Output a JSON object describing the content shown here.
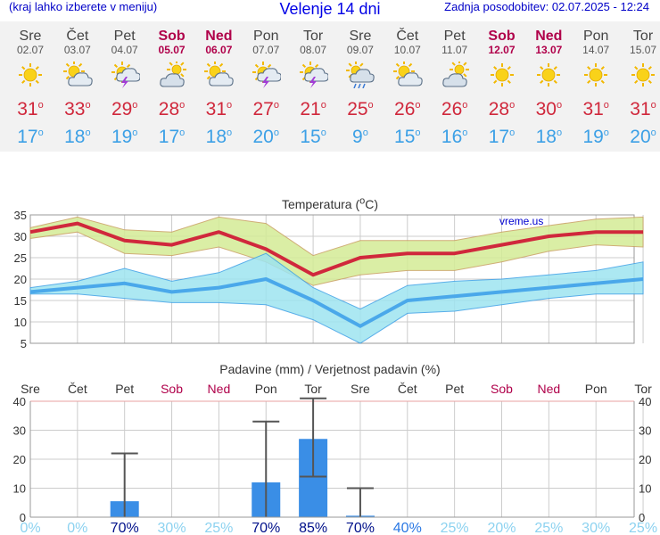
{
  "header": {
    "left": "(kraj lahko izberete v meniju)",
    "title": "Velenje 14 dni",
    "right": "Zadnja posodobitev: 02.07.2025 - 12:24"
  },
  "days": [
    {
      "name": "Sre",
      "date": "02.07",
      "weekend": false,
      "icon": "sun-icon",
      "tmax": "31",
      "tmin": "17"
    },
    {
      "name": "Čet",
      "date": "03.07",
      "weekend": false,
      "icon": "sun-cloud-icon",
      "tmax": "33",
      "tmin": "18"
    },
    {
      "name": "Pet",
      "date": "04.07",
      "weekend": false,
      "icon": "sun-thunder-icon",
      "tmax": "29",
      "tmin": "19"
    },
    {
      "name": "Sob",
      "date": "05.07",
      "weekend": true,
      "icon": "cloud-sun-icon",
      "tmax": "28",
      "tmin": "17"
    },
    {
      "name": "Ned",
      "date": "06.07",
      "weekend": true,
      "icon": "sun-cloud-icon",
      "tmax": "31",
      "tmin": "18"
    },
    {
      "name": "Pon",
      "date": "07.07",
      "weekend": false,
      "icon": "sun-thunder-icon",
      "tmax": "27",
      "tmin": "20"
    },
    {
      "name": "Tor",
      "date": "08.07",
      "weekend": false,
      "icon": "sun-thunder-icon",
      "tmax": "21",
      "tmin": "15"
    },
    {
      "name": "Sre",
      "date": "09.07",
      "weekend": false,
      "icon": "rain-cloud-icon",
      "tmax": "25",
      "tmin": "9"
    },
    {
      "name": "Čet",
      "date": "10.07",
      "weekend": false,
      "icon": "sun-cloud-icon",
      "tmax": "26",
      "tmin": "15"
    },
    {
      "name": "Pet",
      "date": "11.07",
      "weekend": false,
      "icon": "cloud-sun-icon",
      "tmax": "26",
      "tmin": "16"
    },
    {
      "name": "Sob",
      "date": "12.07",
      "weekend": true,
      "icon": "sun-icon",
      "tmax": "28",
      "tmin": "17"
    },
    {
      "name": "Ned",
      "date": "13.07",
      "weekend": true,
      "icon": "sun-icon",
      "tmax": "30",
      "tmin": "18"
    },
    {
      "name": "Pon",
      "date": "14.07",
      "weekend": false,
      "icon": "sun-icon",
      "tmax": "31",
      "tmin": "19"
    },
    {
      "name": "Tor",
      "date": "15.07",
      "weekend": false,
      "icon": "sun-icon",
      "tmax": "31",
      "tmin": "20"
    }
  ],
  "colors": {
    "max": "#d0283c",
    "min": "#3ca0e6",
    "maxBand": "#d4ec96",
    "minBand": "#9ee4f0",
    "precipBar": "#3a8ee6",
    "weekend": "#b0004a"
  },
  "chart_data": [
    {
      "type": "line",
      "title": "Temperatura (°C)",
      "watermark": "vreme.us",
      "ylim": [
        5,
        35
      ],
      "yticks": [
        5,
        10,
        15,
        20,
        25,
        30,
        35
      ],
      "grid": true,
      "series": [
        {
          "name": "max",
          "values": [
            31,
            33,
            29,
            28,
            31,
            27,
            21,
            25,
            26,
            26,
            28,
            30,
            31,
            31
          ]
        },
        {
          "name": "max-low",
          "values": [
            29.5,
            31,
            26,
            25.5,
            27.5,
            24,
            18.5,
            21,
            22,
            22,
            24,
            26.5,
            28,
            27.5
          ]
        },
        {
          "name": "max-high",
          "values": [
            32,
            34.5,
            31.5,
            31,
            34.5,
            33,
            25.5,
            29,
            29,
            29,
            31,
            32.5,
            34,
            34.5
          ]
        },
        {
          "name": "min",
          "values": [
            17,
            18,
            19,
            17,
            18,
            20,
            15,
            9,
            15,
            16,
            17,
            18,
            19,
            20
          ]
        },
        {
          "name": "min-low",
          "values": [
            16.5,
            16.5,
            15.5,
            14.5,
            14.5,
            14,
            10.5,
            5,
            12,
            12.5,
            14,
            15.5,
            16.5,
            16.5
          ]
        },
        {
          "name": "min-high",
          "values": [
            18,
            19.5,
            22.5,
            19.5,
            21.5,
            26,
            18,
            13,
            18.5,
            19.5,
            20,
            21,
            22,
            24
          ]
        }
      ]
    },
    {
      "type": "bar",
      "title": "Padavine (mm) / Verjetnost padavin (%)",
      "ylim": [
        0,
        40
      ],
      "yticks": [
        0,
        10,
        20,
        30,
        40
      ],
      "values": [
        0,
        0,
        5.5,
        0,
        0,
        12,
        27,
        0.5,
        0,
        0,
        0,
        0,
        0,
        0
      ],
      "errorbars": [
        null,
        null,
        [
          0,
          22
        ],
        null,
        null,
        [
          0,
          33
        ],
        [
          14,
          41
        ],
        [
          0,
          10
        ],
        null,
        null,
        null,
        null,
        null,
        null
      ],
      "probability": [
        "0%",
        "0%",
        "70%",
        "30%",
        "25%",
        "70%",
        "85%",
        "70%",
        "40%",
        "25%",
        "20%",
        "25%",
        "30%",
        "25%"
      ]
    }
  ]
}
